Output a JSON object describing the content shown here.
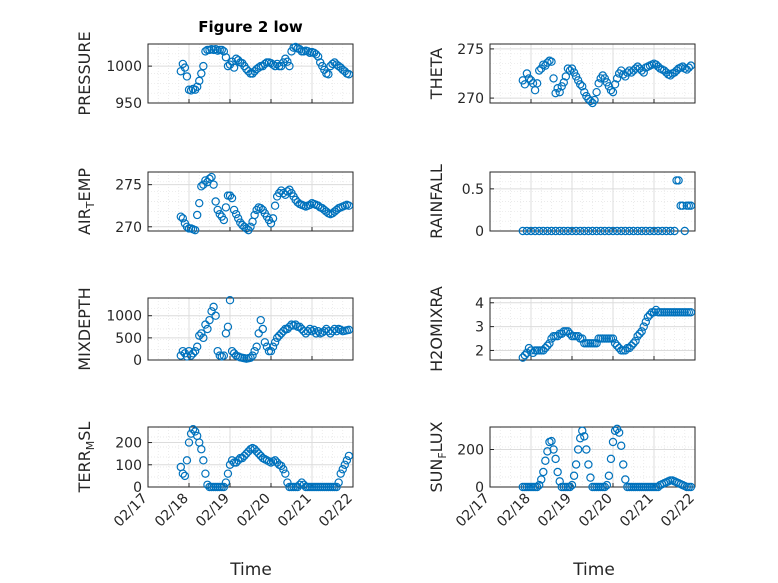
{
  "chart_data": [
    {
      "type": "scatter",
      "title": "Figure 2 low",
      "ylabel": "PRESSURE",
      "ylim": [
        950,
        1030
      ],
      "yticks": [
        950,
        1000
      ],
      "xticklabels": [
        "02/17",
        "02/18",
        "02/19",
        "02/20",
        "02/21",
        "02/22"
      ],
      "x": [
        0.8,
        0.85,
        0.9,
        0.95,
        1.0,
        1.05,
        1.1,
        1.15,
        1.2,
        1.25,
        1.3,
        1.35,
        1.4,
        1.45,
        1.5,
        1.55,
        1.6,
        1.65,
        1.7,
        1.75,
        1.8,
        1.85,
        1.9,
        1.95,
        2.0,
        2.05,
        2.1,
        2.15,
        2.2,
        2.25,
        2.3,
        2.35,
        2.4,
        2.45,
        2.5,
        2.55,
        2.6,
        2.65,
        2.7,
        2.75,
        2.8,
        2.85,
        2.9,
        2.95,
        3.0,
        3.05,
        3.1,
        3.15,
        3.2,
        3.25,
        3.3,
        3.35,
        3.4,
        3.45,
        3.5,
        3.55,
        3.6,
        3.65,
        3.7,
        3.75,
        3.8,
        3.85,
        3.9,
        3.95,
        4.0,
        4.05,
        4.1,
        4.15,
        4.2,
        4.25,
        4.3,
        4.35,
        4.4,
        4.45,
        4.5,
        4.55,
        4.6,
        4.65,
        4.7,
        4.75,
        4.8,
        4.85,
        4.9
      ],
      "y": [
        993,
        1003,
        998,
        986,
        968,
        967,
        969,
        968,
        972,
        980,
        990,
        1000,
        1020,
        1022,
        1022,
        1023,
        1022,
        1023,
        1021,
        1022,
        1022,
        1020,
        1012,
        1000,
        1002,
        1006,
        998,
        1010,
        1008,
        1005,
        1004,
        1000,
        996,
        993,
        990,
        990,
        993,
        996,
        998,
        1000,
        1000,
        1003,
        1005,
        1005,
        1004,
        1002,
        1000,
        1003,
        1000,
        1000,
        1005,
        1010,
        1006,
        1000,
        1020,
        1025,
        1026,
        1024,
        1023,
        1020,
        1020,
        1021,
        1020,
        1018,
        1019,
        1018,
        1016,
        1013,
        1005,
        1000,
        995,
        990,
        989,
        1000,
        1003,
        1005,
        1002,
        1000,
        998,
        995,
        993,
        990,
        989
      ]
    },
    {
      "type": "scatter",
      "ylabel": "THETA",
      "ylim": [
        269.5,
        275.5
      ],
      "yticks": [
        270,
        275
      ],
      "xticklabels": [
        "02/17",
        "02/18",
        "02/19",
        "02/20",
        "02/21",
        "02/22"
      ],
      "x": [
        0.8,
        0.85,
        0.9,
        0.95,
        1.0,
        1.05,
        1.1,
        1.15,
        1.2,
        1.25,
        1.3,
        1.35,
        1.4,
        1.45,
        1.5,
        1.55,
        1.6,
        1.65,
        1.7,
        1.75,
        1.8,
        1.85,
        1.9,
        1.95,
        2.0,
        2.05,
        2.1,
        2.15,
        2.2,
        2.25,
        2.3,
        2.35,
        2.4,
        2.45,
        2.5,
        2.55,
        2.6,
        2.65,
        2.7,
        2.75,
        2.8,
        2.85,
        2.9,
        2.95,
        3.0,
        3.05,
        3.1,
        3.15,
        3.2,
        3.25,
        3.3,
        3.35,
        3.4,
        3.45,
        3.5,
        3.55,
        3.6,
        3.65,
        3.7,
        3.75,
        3.8,
        3.85,
        3.9,
        3.95,
        4.0,
        4.05,
        4.1,
        4.15,
        4.2,
        4.25,
        4.3,
        4.35,
        4.4,
        4.45,
        4.5,
        4.55,
        4.6,
        4.65,
        4.7,
        4.75,
        4.8,
        4.85,
        4.9
      ],
      "y": [
        271.8,
        271.4,
        272.5,
        272.0,
        271.8,
        271.5,
        270.8,
        271.5,
        272.8,
        273.0,
        273.4,
        273.3,
        273.6,
        273.8,
        273.7,
        272.0,
        270.5,
        271.0,
        270.6,
        271.2,
        271.6,
        272.2,
        273.0,
        272.8,
        273.0,
        272.6,
        272.2,
        271.8,
        271.4,
        271.2,
        270.6,
        270.2,
        269.9,
        269.7,
        269.5,
        269.8,
        270.6,
        271.5,
        272.0,
        272.3,
        272.0,
        271.6,
        271.2,
        270.8,
        270.6,
        271.4,
        272.0,
        272.5,
        272.8,
        272.4,
        272.2,
        272.6,
        272.8,
        272.6,
        272.8,
        273.0,
        273.2,
        273.0,
        272.8,
        272.6,
        273.1,
        273.2,
        273.3,
        273.4,
        273.5,
        273.4,
        273.2,
        273.0,
        272.9,
        272.8,
        272.6,
        272.4,
        272.3,
        272.5,
        272.6,
        272.8,
        273.0,
        273.1,
        273.2,
        273.0,
        272.9,
        273.1,
        273.3
      ]
    },
    {
      "type": "scatter",
      "ylabel": "AIR_TEMP",
      "ylim": [
        269.5,
        276.5
      ],
      "yticks": [
        270,
        275
      ],
      "xticklabels": [
        "02/17",
        "02/18",
        "02/19",
        "02/20",
        "02/21",
        "02/22"
      ],
      "x": [
        0.8,
        0.85,
        0.9,
        0.95,
        1.0,
        1.05,
        1.1,
        1.15,
        1.2,
        1.25,
        1.3,
        1.35,
        1.4,
        1.45,
        1.5,
        1.55,
        1.6,
        1.65,
        1.7,
        1.75,
        1.8,
        1.85,
        1.9,
        1.95,
        2.0,
        2.05,
        2.1,
        2.15,
        2.2,
        2.25,
        2.3,
        2.35,
        2.4,
        2.45,
        2.5,
        2.55,
        2.6,
        2.65,
        2.7,
        2.75,
        2.8,
        2.85,
        2.9,
        2.95,
        3.0,
        3.05,
        3.1,
        3.15,
        3.2,
        3.25,
        3.3,
        3.35,
        3.4,
        3.45,
        3.5,
        3.55,
        3.6,
        3.65,
        3.7,
        3.75,
        3.8,
        3.85,
        3.9,
        3.95,
        4.0,
        4.05,
        4.1,
        4.15,
        4.2,
        4.25,
        4.3,
        4.35,
        4.4,
        4.45,
        4.5,
        4.55,
        4.6,
        4.65,
        4.7,
        4.75,
        4.8,
        4.85,
        4.9
      ],
      "y": [
        271.2,
        271.0,
        270.4,
        270.0,
        269.8,
        269.8,
        269.7,
        269.6,
        271.4,
        272.8,
        274.8,
        275.0,
        275.5,
        275.3,
        275.7,
        275.9,
        275.0,
        273.0,
        272.0,
        271.5,
        271.2,
        270.8,
        272.3,
        273.7,
        273.7,
        273.4,
        272.0,
        271.5,
        271.0,
        270.5,
        270.2,
        270.0,
        269.8,
        269.6,
        270.0,
        270.6,
        271.4,
        272.0,
        272.3,
        272.2,
        272.0,
        271.6,
        271.2,
        270.8,
        270.4,
        271.0,
        272.5,
        273.6,
        274.0,
        274.3,
        274.0,
        273.8,
        274.2,
        274.4,
        274.0,
        273.6,
        273.2,
        272.9,
        272.7,
        272.6,
        272.5,
        272.4,
        272.5,
        272.6,
        272.8,
        272.7,
        272.6,
        272.5,
        272.3,
        272.2,
        272.0,
        271.8,
        271.6,
        271.5,
        271.6,
        271.8,
        272.0,
        272.2,
        272.3,
        272.4,
        272.5,
        272.6,
        272.5
      ]
    },
    {
      "type": "scatter",
      "ylabel": "RAINFALL",
      "ylim": [
        0,
        0.7
      ],
      "yticks": [
        0,
        0.5
      ],
      "xticklabels": [
        "02/17",
        "02/18",
        "02/19",
        "02/20",
        "02/21",
        "02/22"
      ],
      "x": [
        0.8,
        0.9,
        1.0,
        1.1,
        1.2,
        1.3,
        1.4,
        1.5,
        1.6,
        1.7,
        1.8,
        1.9,
        2.0,
        2.1,
        2.2,
        2.3,
        2.4,
        2.5,
        2.6,
        2.7,
        2.8,
        2.9,
        3.0,
        3.1,
        3.2,
        3.3,
        3.4,
        3.5,
        3.6,
        3.7,
        3.8,
        3.9,
        4.0,
        4.1,
        4.2,
        4.3,
        4.4,
        4.5,
        4.55,
        4.6,
        4.65,
        4.7,
        4.75,
        4.8,
        4.85,
        4.9
      ],
      "y": [
        0,
        0,
        0,
        0,
        0,
        0,
        0,
        0,
        0,
        0,
        0,
        0,
        0,
        0,
        0,
        0,
        0,
        0,
        0,
        0,
        0,
        0,
        0,
        0,
        0,
        0,
        0,
        0,
        0,
        0,
        0,
        0,
        0,
        0,
        0,
        0,
        0,
        0,
        0.6,
        0.6,
        0.3,
        0.3,
        0,
        0.3,
        0.3,
        0.3
      ]
    },
    {
      "type": "scatter",
      "ylabel": "MIXDEPTH",
      "ylim": [
        0,
        1400
      ],
      "yticks": [
        0,
        500,
        1000
      ],
      "xticklabels": [
        "02/17",
        "02/18",
        "02/19",
        "02/20",
        "02/21",
        "02/22"
      ],
      "x": [
        0.8,
        0.85,
        0.9,
        0.95,
        1.0,
        1.05,
        1.1,
        1.15,
        1.2,
        1.25,
        1.3,
        1.35,
        1.4,
        1.45,
        1.5,
        1.55,
        1.6,
        1.65,
        1.7,
        1.75,
        1.8,
        1.85,
        1.9,
        1.95,
        2.0,
        2.05,
        2.1,
        2.15,
        2.2,
        2.25,
        2.3,
        2.35,
        2.4,
        2.45,
        2.5,
        2.55,
        2.6,
        2.65,
        2.7,
        2.75,
        2.8,
        2.85,
        2.9,
        2.95,
        3.0,
        3.05,
        3.1,
        3.15,
        3.2,
        3.25,
        3.3,
        3.35,
        3.4,
        3.45,
        3.5,
        3.55,
        3.6,
        3.65,
        3.7,
        3.75,
        3.8,
        3.85,
        3.9,
        3.95,
        4.0,
        4.05,
        4.1,
        4.15,
        4.2,
        4.25,
        4.3,
        4.35,
        4.4,
        4.45,
        4.5,
        4.55,
        4.6,
        4.65,
        4.7,
        4.75,
        4.8,
        4.85,
        4.9
      ],
      "y": [
        100,
        200,
        150,
        80,
        200,
        100,
        150,
        200,
        300,
        550,
        600,
        500,
        800,
        700,
        900,
        1100,
        1200,
        1000,
        200,
        100,
        80,
        100,
        600,
        750,
        1350,
        200,
        150,
        100,
        80,
        60,
        50,
        40,
        30,
        40,
        50,
        100,
        200,
        300,
        600,
        900,
        700,
        400,
        300,
        200,
        200,
        300,
        400,
        500,
        550,
        600,
        650,
        700,
        700,
        750,
        800,
        780,
        800,
        750,
        750,
        700,
        650,
        600,
        650,
        700,
        650,
        680,
        600,
        650,
        600,
        620,
        650,
        700,
        650,
        600,
        650,
        700,
        650,
        700,
        680,
        650,
        660,
        670,
        680
      ]
    },
    {
      "type": "scatter",
      "ylabel": "H2OMIXRA",
      "ylim": [
        1.6,
        4.2
      ],
      "yticks": [
        2,
        3,
        4
      ],
      "xticklabels": [
        "02/17",
        "02/18",
        "02/19",
        "02/20",
        "02/21",
        "02/22"
      ],
      "x": [
        0.8,
        0.85,
        0.9,
        0.95,
        1.0,
        1.05,
        1.1,
        1.15,
        1.2,
        1.25,
        1.3,
        1.35,
        1.4,
        1.45,
        1.5,
        1.55,
        1.6,
        1.65,
        1.7,
        1.75,
        1.8,
        1.85,
        1.9,
        1.95,
        2.0,
        2.05,
        2.1,
        2.15,
        2.2,
        2.25,
        2.3,
        2.35,
        2.4,
        2.45,
        2.5,
        2.55,
        2.6,
        2.65,
        2.7,
        2.75,
        2.8,
        2.85,
        2.9,
        2.95,
        3.0,
        3.05,
        3.1,
        3.15,
        3.2,
        3.25,
        3.3,
        3.35,
        3.4,
        3.45,
        3.5,
        3.55,
        3.6,
        3.65,
        3.7,
        3.75,
        3.8,
        3.85,
        3.9,
        3.95,
        4.0,
        4.05,
        4.1,
        4.15,
        4.2,
        4.25,
        4.3,
        4.35,
        4.4,
        4.45,
        4.5,
        4.55,
        4.6,
        4.65,
        4.7,
        4.75,
        4.8,
        4.85,
        4.9
      ],
      "y": [
        1.7,
        1.8,
        1.9,
        2.1,
        2.0,
        1.9,
        2.0,
        2.0,
        2.0,
        2.0,
        2.0,
        2.1,
        2.2,
        2.3,
        2.5,
        2.6,
        2.6,
        2.6,
        2.7,
        2.7,
        2.8,
        2.8,
        2.8,
        2.7,
        2.6,
        2.6,
        2.6,
        2.6,
        2.5,
        2.5,
        2.3,
        2.3,
        2.3,
        2.3,
        2.3,
        2.3,
        2.3,
        2.5,
        2.5,
        2.5,
        2.5,
        2.5,
        2.5,
        2.5,
        2.5,
        2.3,
        2.2,
        2.1,
        2.0,
        2.0,
        2.0,
        2.1,
        2.1,
        2.2,
        2.3,
        2.4,
        2.6,
        2.7,
        2.8,
        3.0,
        3.2,
        3.4,
        3.5,
        3.6,
        3.6,
        3.7,
        3.6,
        3.6,
        3.6,
        3.6,
        3.6,
        3.6,
        3.6,
        3.6,
        3.6,
        3.6,
        3.6,
        3.6,
        3.6,
        3.6,
        3.6,
        3.6,
        3.6
      ]
    },
    {
      "type": "scatter",
      "ylabel": "TERR_MSL",
      "ylim": [
        0,
        270
      ],
      "yticks": [
        0,
        100,
        200
      ],
      "xticklabels": [
        "02/17",
        "02/18",
        "02/19",
        "02/20",
        "02/21",
        "02/22"
      ],
      "x": [
        0.8,
        0.85,
        0.9,
        0.95,
        1.0,
        1.05,
        1.1,
        1.15,
        1.2,
        1.25,
        1.3,
        1.35,
        1.4,
        1.45,
        1.5,
        1.55,
        1.6,
        1.65,
        1.7,
        1.75,
        1.8,
        1.85,
        1.9,
        1.95,
        2.0,
        2.05,
        2.1,
        2.15,
        2.2,
        2.25,
        2.3,
        2.35,
        2.4,
        2.45,
        2.5,
        2.55,
        2.6,
        2.65,
        2.7,
        2.75,
        2.8,
        2.85,
        2.9,
        2.95,
        3.0,
        3.05,
        3.1,
        3.15,
        3.2,
        3.25,
        3.3,
        3.35,
        3.4,
        3.45,
        3.5,
        3.55,
        3.6,
        3.65,
        3.7,
        3.75,
        3.8,
        3.85,
        3.9,
        3.95,
        4.0,
        4.05,
        4.1,
        4.15,
        4.2,
        4.25,
        4.3,
        4.35,
        4.4,
        4.45,
        4.5,
        4.55,
        4.6,
        4.65,
        4.7,
        4.75,
        4.8,
        4.85,
        4.9
      ],
      "y": [
        90,
        60,
        50,
        120,
        200,
        240,
        260,
        250,
        230,
        200,
        170,
        120,
        60,
        10,
        0,
        0,
        0,
        0,
        0,
        0,
        0,
        0,
        20,
        60,
        100,
        120,
        110,
        110,
        120,
        130,
        130,
        140,
        150,
        160,
        170,
        175,
        170,
        160,
        150,
        140,
        130,
        125,
        120,
        115,
        110,
        115,
        120,
        110,
        100,
        95,
        80,
        60,
        20,
        0,
        0,
        0,
        0,
        0,
        10,
        20,
        10,
        0,
        0,
        0,
        0,
        0,
        0,
        0,
        0,
        0,
        0,
        0,
        0,
        0,
        0,
        0,
        0,
        20,
        60,
        80,
        100,
        120,
        140
      ]
    },
    {
      "type": "scatter",
      "ylabel": "SUN_FLUX",
      "ylim": [
        0,
        320
      ],
      "yticks": [
        0,
        200
      ],
      "xticklabels": [
        "02/17",
        "02/18",
        "02/19",
        "02/20",
        "02/21",
        "02/22"
      ],
      "x": [
        0.8,
        0.85,
        0.9,
        0.95,
        1.0,
        1.05,
        1.1,
        1.15,
        1.2,
        1.25,
        1.3,
        1.35,
        1.4,
        1.45,
        1.5,
        1.55,
        1.6,
        1.65,
        1.7,
        1.75,
        1.8,
        1.85,
        1.9,
        1.95,
        2.0,
        2.05,
        2.1,
        2.15,
        2.2,
        2.25,
        2.3,
        2.35,
        2.4,
        2.45,
        2.5,
        2.55,
        2.6,
        2.65,
        2.7,
        2.75,
        2.8,
        2.85,
        2.9,
        2.95,
        3.0,
        3.05,
        3.1,
        3.15,
        3.2,
        3.25,
        3.3,
        3.35,
        3.4,
        3.45,
        3.5,
        3.55,
        3.6,
        3.65,
        3.7,
        3.75,
        3.8,
        3.85,
        3.9,
        3.95,
        4.0,
        4.05,
        4.1,
        4.15,
        4.2,
        4.25,
        4.3,
        4.35,
        4.4,
        4.45,
        4.5,
        4.55,
        4.6,
        4.65,
        4.7,
        4.75,
        4.8,
        4.85,
        4.9
      ],
      "y": [
        0,
        0,
        0,
        0,
        0,
        0,
        0,
        0,
        10,
        40,
        80,
        140,
        190,
        240,
        245,
        200,
        150,
        80,
        30,
        0,
        0,
        0,
        0,
        0,
        10,
        60,
        120,
        200,
        260,
        300,
        270,
        200,
        120,
        50,
        0,
        0,
        0,
        0,
        0,
        0,
        0,
        10,
        60,
        150,
        240,
        300,
        310,
        290,
        220,
        120,
        40,
        0,
        0,
        0,
        0,
        0,
        0,
        0,
        0,
        0,
        0,
        0,
        0,
        0,
        0,
        0,
        0,
        10,
        15,
        20,
        25,
        30,
        35,
        35,
        30,
        25,
        20,
        15,
        10,
        5,
        0,
        0,
        0
      ]
    }
  ],
  "figure": {
    "xlabel": "Time"
  }
}
